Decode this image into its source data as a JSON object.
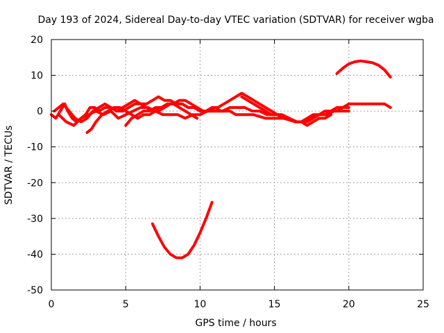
{
  "chart_data": {
    "type": "line",
    "title": "Day 193 of 2024, Sidereal Day-to-day VTEC variation (SDTVAR) for receiver wgba",
    "xlabel": "GPS time / hours",
    "ylabel": "SDTVAR / TECUs",
    "xlim": [
      0,
      25
    ],
    "ylim": [
      -50,
      20
    ],
    "xticks": [
      0,
      5,
      10,
      15,
      20,
      25
    ],
    "yticks": [
      -50,
      -40,
      -30,
      -20,
      -10,
      0,
      10,
      20
    ],
    "grid": true,
    "color": "#ff0000",
    "series": [
      {
        "name": "trace-1",
        "x": [
          0,
          0.3,
          0.6,
          0.9,
          1.1,
          1.4,
          1.7,
          2.0,
          2.3,
          2.6,
          2.9,
          3.2,
          3.6,
          4.0,
          4.4,
          4.8,
          5.2,
          5.6,
          6.0,
          6.4,
          6.8,
          7.2,
          7.6,
          8.0,
          8.4,
          8.8,
          9.2,
          9.6,
          10.0,
          10.4,
          10.8,
          11.2,
          11.6,
          12.0,
          12.4,
          12.8,
          13.2,
          13.6,
          14.0,
          14.4,
          14.8,
          15.2,
          15.6,
          16.0,
          16.4,
          16.8,
          17.2,
          17.6,
          18.0,
          18.4,
          18.8,
          19.2,
          19.6,
          20.0,
          20.4,
          20.8,
          21.2,
          21.6,
          22.0,
          22.4,
          22.8
        ],
        "y": [
          -1,
          -2,
          0,
          2,
          0,
          -2,
          -3,
          -2,
          -1,
          1,
          1,
          0,
          1,
          1,
          0,
          0,
          1,
          2,
          2,
          1,
          0,
          0,
          1,
          2,
          2,
          2,
          1,
          1,
          0,
          0,
          0,
          0,
          0,
          0,
          -1,
          -1,
          -1,
          -1,
          -1.5,
          -2,
          -2,
          -2,
          -2,
          -2.5,
          -3,
          -3,
          -2,
          -1,
          -1,
          0,
          0,
          1,
          1,
          2,
          2,
          2,
          2,
          2,
          2,
          2,
          1
        ]
      },
      {
        "name": "trace-2",
        "x": [
          0.2,
          0.5,
          0.8,
          1.2,
          1.6,
          2.0,
          2.4,
          2.8,
          3.2,
          3.6,
          4.0,
          4.4,
          4.8,
          5.2,
          5.6,
          6.0,
          6.4,
          6.8,
          7.2,
          7.6,
          8.0,
          8.4,
          8.8,
          9.2,
          9.6,
          10.0,
          10.4,
          10.8,
          11.2,
          11.6,
          12.0,
          12.4,
          12.8,
          13.2,
          13.6,
          14.0,
          14.4,
          14.8,
          15.2,
          15.6,
          16.0,
          16.4,
          16.8,
          17.2,
          17.6,
          18.0,
          18.4,
          18.8,
          19.2,
          19.6,
          20.0
        ],
        "y": [
          0,
          1,
          2,
          0,
          -2,
          -3,
          -2,
          0,
          1,
          2,
          1,
          0,
          1,
          2,
          3,
          2,
          2,
          3,
          4,
          3,
          3,
          2,
          2,
          1,
          1,
          0,
          0,
          1,
          1,
          2,
          3,
          4,
          5,
          4,
          3,
          2,
          1,
          0,
          -1,
          -2,
          -2,
          -3,
          -3,
          -3,
          -2,
          -1,
          -1,
          0,
          0,
          1,
          1
        ]
      },
      {
        "name": "trace-3",
        "x": [
          0.5,
          1.0,
          1.5,
          2.0,
          2.5,
          3.0,
          3.5,
          4.0,
          4.5,
          5.0,
          5.5,
          6.0,
          6.5,
          7.0,
          7.5,
          8.0,
          8.5,
          9.0,
          9.5,
          10.0,
          10.5,
          11.0,
          11.5,
          12.0,
          12.5,
          13.0,
          13.5,
          14.0,
          14.5,
          15.0,
          15.5,
          16.0,
          16.5,
          17.0,
          17.5,
          18.0,
          18.5,
          19.0,
          19.5,
          20.0
        ],
        "y": [
          -1,
          -3,
          -4,
          -2,
          -1,
          0,
          -1,
          0,
          -2,
          -1,
          0,
          1,
          1,
          0,
          -1,
          -1,
          -1,
          -2,
          -1,
          -1,
          0,
          0,
          0,
          1,
          1,
          1,
          0,
          0,
          -1,
          -1,
          -1,
          -2,
          -3,
          -3,
          -2,
          -1,
          -1,
          0,
          0,
          0
        ]
      },
      {
        "name": "trace-4",
        "x": [
          2.4,
          2.7,
          3.0,
          3.4,
          3.8,
          4.2,
          4.6,
          5.0,
          5.4,
          5.8,
          6.2,
          6.6,
          7.0,
          7.4,
          7.8,
          8.2,
          8.6,
          9.0,
          9.4,
          9.8
        ],
        "y": [
          -6,
          -5,
          -3,
          -1,
          0,
          1,
          1,
          0,
          -1,
          -2,
          -1,
          -1,
          0,
          1,
          2,
          2,
          1,
          0,
          -1,
          -2
        ]
      },
      {
        "name": "trace-5",
        "x": [
          5.0,
          5.4,
          5.8,
          6.2,
          6.6,
          7.0,
          7.4,
          7.8,
          8.2,
          8.6,
          9.0,
          9.4,
          9.8,
          10.2,
          10.6,
          11.0,
          11.4,
          11.8
        ],
        "y": [
          -4,
          -2,
          -1,
          0,
          0,
          1,
          1,
          2,
          2,
          3,
          3,
          2,
          1,
          0,
          0,
          1,
          0,
          0
        ]
      },
      {
        "name": "trace-6",
        "x": [
          12.8,
          13.2,
          13.6,
          14.0,
          14.4,
          14.8,
          15.2,
          15.6,
          16.0,
          16.4,
          16.8,
          17.2,
          17.6,
          18.0,
          18.4,
          18.8
        ],
        "y": [
          4,
          3,
          2,
          1,
          0,
          -1,
          -1,
          -2,
          -2,
          -3,
          -3,
          -4,
          -3,
          -2,
          -2,
          -1
        ]
      },
      {
        "name": "trace-7",
        "x": [
          19.2,
          19.6,
          20.0,
          20.4,
          20.8,
          21.2,
          21.6,
          22.0,
          22.4,
          22.8
        ],
        "y": [
          10.5,
          12,
          13.2,
          13.8,
          14,
          13.8,
          13.5,
          12.8,
          11.5,
          9.5
        ]
      },
      {
        "name": "trace-8",
        "x": [
          6.8,
          7.2,
          7.6,
          8.0,
          8.4,
          8.8,
          9.2,
          9.6,
          10.0,
          10.4,
          10.8
        ],
        "y": [
          -31.5,
          -35,
          -38,
          -40,
          -41,
          -41,
          -40,
          -37.5,
          -34,
          -30,
          -25.5
        ]
      }
    ]
  }
}
